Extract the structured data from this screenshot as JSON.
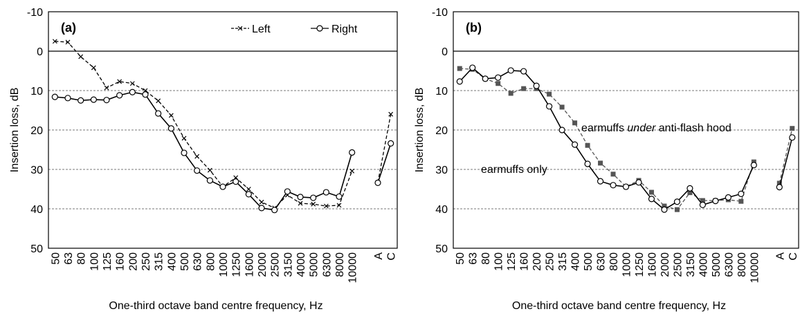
{
  "chart_data": [
    {
      "type": "line",
      "panel_label": "(a)",
      "xlabel": "One-third octave band centre frequency, Hz",
      "ylabel": "Insertion loss, dB",
      "categories": [
        "50",
        "63",
        "80",
        "100",
        "125",
        "160",
        "200",
        "250",
        "315",
        "400",
        "500",
        "630",
        "800",
        "1000",
        "1250",
        "1600",
        "2000",
        "2500",
        "3150",
        "4000",
        "5000",
        "6300",
        "8000",
        "10000",
        null,
        "A",
        "C"
      ],
      "series": [
        {
          "name": "Left",
          "color": "#000000",
          "dash": true,
          "marker": "x",
          "values": [
            -2.5,
            -2.3,
            1.4,
            4.2,
            9.3,
            7.7,
            8.2,
            10,
            12.6,
            16.3,
            22.1,
            26.7,
            30.2,
            34.4,
            32.1,
            35,
            38.3,
            39.8,
            36.5,
            38.6,
            38.8,
            39.3,
            39.1,
            30.4,
            null,
            33.3,
            16
          ]
        },
        {
          "name": "Right",
          "color": "#000000",
          "dash": false,
          "marker": "circle",
          "values": [
            11.6,
            11.9,
            12.5,
            12.3,
            12.4,
            11.2,
            10.4,
            11,
            15.8,
            19.6,
            25.8,
            30.3,
            32.8,
            34.4,
            33.1,
            36.3,
            39.8,
            40.3,
            35.6,
            37,
            37.2,
            35.8,
            36.9,
            25.7,
            null,
            33.4,
            23.4
          ]
        }
      ],
      "ylim": [
        50,
        -10
      ],
      "yticks": [
        -10,
        0,
        10,
        20,
        30,
        40,
        50
      ],
      "grid": true,
      "legend": "top-right"
    },
    {
      "type": "line",
      "panel_label": "(b)",
      "xlabel": "One-third octave band centre frequency, Hz",
      "ylabel": "Insertion loss, dB",
      "categories": [
        "50",
        "63",
        "80",
        "100",
        "125",
        "160",
        "200",
        "250",
        "315",
        "400",
        "500",
        "630",
        "800",
        "1000",
        "1250",
        "1600",
        "2000",
        "2500",
        "3150",
        "4000",
        "5000",
        "6300",
        "8000",
        "10000",
        null,
        "A",
        "C"
      ],
      "series": [
        {
          "color": "#555555",
          "dash": true,
          "marker": "square",
          "values": [
            4.4,
            4.6,
            7,
            8.2,
            10.7,
            9.5,
            9.5,
            10.9,
            14.2,
            18.2,
            23.9,
            28.4,
            31.2,
            34.4,
            32.8,
            35.8,
            39.3,
            40.2,
            35.9,
            37.9,
            37.9,
            37.7,
            38.1,
            28.1,
            null,
            33.5,
            19.6
          ]
        },
        {
          "color": "#000000",
          "dash": false,
          "marker": "circle",
          "values": [
            7.7,
            4.2,
            7,
            6.7,
            4.9,
            5.1,
            8.8,
            14,
            20,
            23.7,
            28.6,
            33,
            34,
            34.4,
            33.3,
            37.5,
            40.2,
            38.2,
            34.8,
            39,
            38,
            37.1,
            36.2,
            28.9,
            null,
            34.5,
            21.9
          ]
        }
      ],
      "annotations": [
        {
          "parts": [
            {
              "text": "earmuffs ",
              "italic": false
            },
            {
              "text": "under",
              "italic": true
            },
            {
              "text": " anti-flash hood",
              "italic": false
            }
          ]
        },
        {
          "parts": [
            {
              "text": "earmuffs only",
              "italic": false
            }
          ]
        }
      ],
      "ylim": [
        50,
        -10
      ],
      "yticks": [
        -10,
        0,
        10,
        20,
        30,
        40,
        50
      ],
      "grid": true
    }
  ]
}
